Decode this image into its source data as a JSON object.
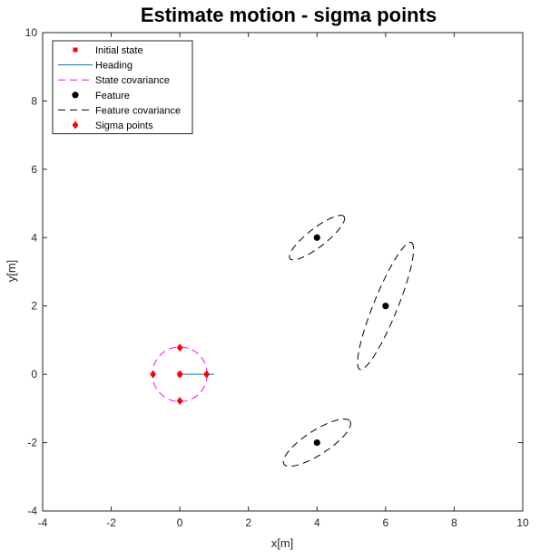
{
  "chart_data": {
    "type": "scatter",
    "title": "Estimate motion - sigma points",
    "xlabel": "x[m]",
    "ylabel": "y[m]",
    "xlim": [
      -4,
      10
    ],
    "ylim": [
      -4,
      10
    ],
    "xticks": [
      -4,
      -2,
      0,
      2,
      4,
      6,
      8,
      10
    ],
    "yticks": [
      -4,
      -2,
      0,
      2,
      4,
      6,
      8,
      10
    ],
    "grid": false,
    "legend_position": "top-left",
    "colors": {
      "initial_state": "#ff0000",
      "heading": "#0072bd",
      "state_covariance": "#ff00ff",
      "feature": "#000000",
      "feature_covariance": "#000000",
      "sigma_points": "#ff0000"
    },
    "legend": [
      {
        "key": "initial_state",
        "label": "Initial state",
        "marker": "square"
      },
      {
        "key": "heading",
        "label": "Heading",
        "marker": "line"
      },
      {
        "key": "state_covariance",
        "label": "State covariance",
        "marker": "dashed"
      },
      {
        "key": "feature",
        "label": "Feature",
        "marker": "circle"
      },
      {
        "key": "feature_covariance",
        "label": "Feature covariance",
        "marker": "dashed"
      },
      {
        "key": "sigma_points",
        "label": "Sigma points",
        "marker": "diamond"
      }
    ],
    "initial_state": {
      "x": 0,
      "y": 0
    },
    "heading": {
      "x": [
        0,
        1
      ],
      "y": [
        0,
        0
      ]
    },
    "state_covariance": {
      "cx": 0,
      "cy": 0,
      "a": 0.8,
      "b": 0.8,
      "angle_deg": 0
    },
    "features": [
      {
        "x": 4,
        "y": 4
      },
      {
        "x": 6,
        "y": 2
      },
      {
        "x": 4,
        "y": -2
      }
    ],
    "feature_covariances": [
      {
        "cx": 4,
        "cy": 4,
        "a": 1.0,
        "b": 0.27,
        "angle_deg": 38
      },
      {
        "cx": 6,
        "cy": 2,
        "a": 2.0,
        "b": 0.35,
        "angle_deg": 68
      },
      {
        "cx": 4,
        "cy": -2,
        "a": 1.15,
        "b": 0.35,
        "angle_deg": 33
      }
    ],
    "sigma_points": [
      {
        "x": 0,
        "y": 0
      },
      {
        "x": 0.78,
        "y": 0
      },
      {
        "x": -0.78,
        "y": 0
      },
      {
        "x": 0,
        "y": 0.78
      },
      {
        "x": 0,
        "y": -0.78
      }
    ]
  }
}
